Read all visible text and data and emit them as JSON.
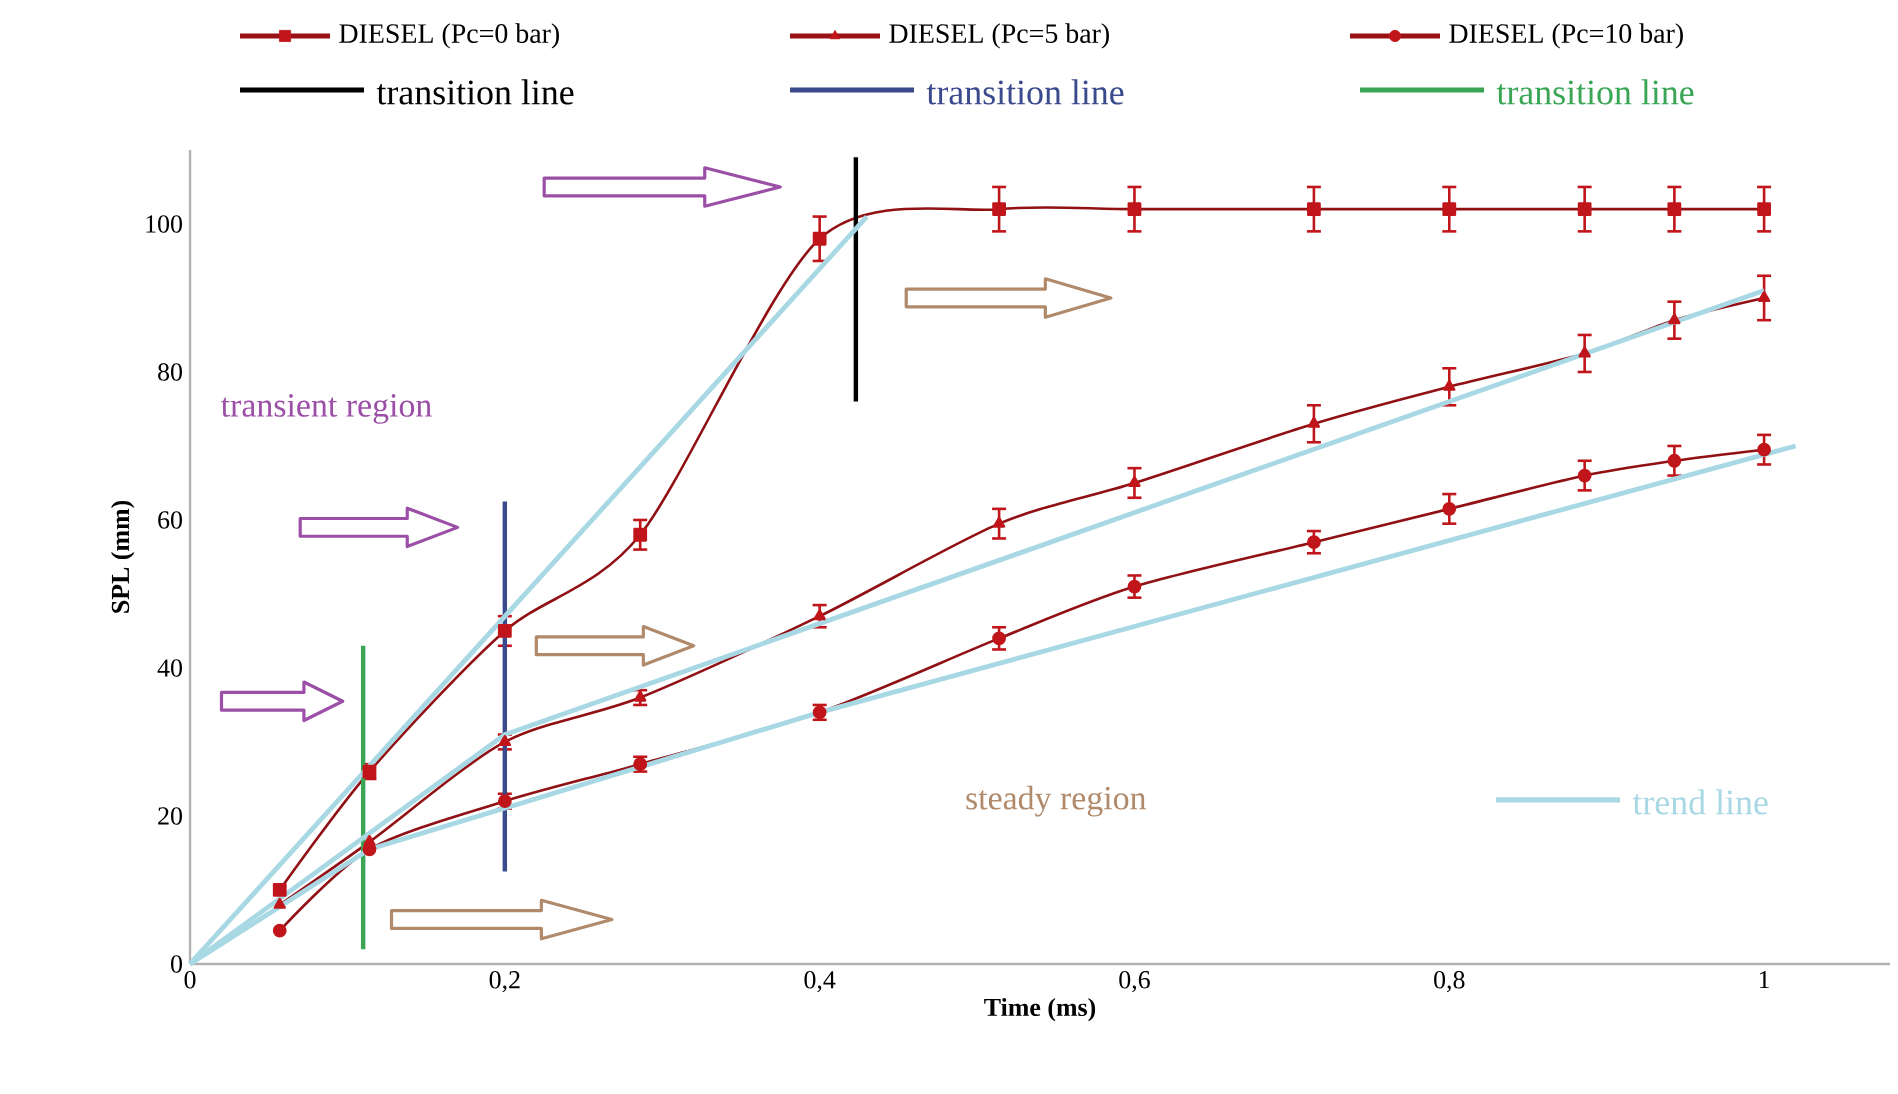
{
  "chart_data": {
    "type": "line",
    "xlabel": "Time (ms)",
    "ylabel": "SPL (mm)",
    "xlim": [
      0,
      1.08
    ],
    "ylim": [
      0,
      110
    ],
    "xticks": [
      0,
      {
        "value": 0.2,
        "label": "0,2"
      },
      {
        "value": 0.4,
        "label": "0,4"
      },
      {
        "value": 0.6,
        "label": "0,6"
      },
      {
        "value": 0.8,
        "label": "0,8"
      },
      1
    ],
    "yticks": [
      0,
      20,
      40,
      60,
      80,
      100
    ],
    "legend": "top",
    "annotations": [
      "transient region",
      "steady region"
    ],
    "series": [
      {
        "name": "DIESEL (Pc=0 bar)",
        "color": "#c0151a",
        "marker": "square",
        "x": [
          0.057,
          0.114,
          0.2,
          0.286,
          0.4,
          0.514,
          0.6,
          0.714,
          0.8,
          0.886,
          0.943,
          1
        ],
        "values": [
          10,
          26,
          45,
          58,
          98,
          102,
          102,
          102,
          102,
          102,
          102,
          102
        ],
        "errors": [
          null,
          1,
          2,
          2,
          3,
          3,
          3,
          3,
          3,
          3,
          3,
          3
        ]
      },
      {
        "name": "DIESEL (Pc=5 bar)",
        "color": "#c0151a",
        "marker": "triangle",
        "x": [
          0.057,
          0.114,
          0.2,
          0.286,
          0.4,
          0.514,
          0.6,
          0.714,
          0.8,
          0.886,
          0.943,
          1
        ],
        "values": [
          8,
          16.5,
          30,
          36,
          47,
          59.5,
          65,
          73,
          78,
          82.5,
          87,
          90
        ],
        "errors": [
          null,
          null,
          1,
          1,
          1.5,
          2,
          2,
          2.5,
          2.5,
          2.5,
          2.5,
          3
        ]
      },
      {
        "name": "DIESEL (Pc=10 bar)",
        "color": "#c0151a",
        "marker": "circle",
        "x": [
          0.057,
          0.114,
          0.2,
          0.286,
          0.4,
          0.514,
          0.6,
          0.714,
          0.8,
          0.886,
          0.943,
          1
        ],
        "values": [
          4.5,
          15.5,
          22,
          27,
          34,
          44,
          51,
          57,
          61.5,
          66,
          68,
          69.5
        ],
        "errors": [
          null,
          null,
          1,
          1,
          1,
          1.5,
          1.5,
          1.5,
          2,
          2,
          2,
          2
        ]
      },
      {
        "name": "transition line",
        "color": "#000000",
        "marker": "none",
        "x": [
          0.423,
          0.423
        ],
        "values": [
          76,
          109
        ]
      },
      {
        "name": "transition line",
        "color": "#3a4a8c",
        "marker": "none",
        "x": [
          0.2,
          0.2
        ],
        "values": [
          12.5,
          62.5
        ]
      },
      {
        "name": "transition line",
        "color": "#3aa655",
        "marker": "none",
        "x": [
          0.11,
          0.11
        ],
        "values": [
          2,
          43
        ]
      },
      {
        "name": "trend line",
        "color": "#a8d8e4",
        "marker": "none",
        "x": [
          0,
          0.43
        ],
        "values": [
          0,
          101
        ]
      },
      {
        "color": "#a8d8e4",
        "marker": "none",
        "x": [
          0,
          0.2,
          1
        ],
        "values": [
          0,
          31,
          91
        ]
      },
      {
        "color": "#a8d8e4",
        "marker": "none",
        "x": [
          0,
          0.114,
          0.4,
          1.02
        ],
        "values": [
          0,
          15.5,
          34,
          70
        ]
      }
    ]
  }
}
